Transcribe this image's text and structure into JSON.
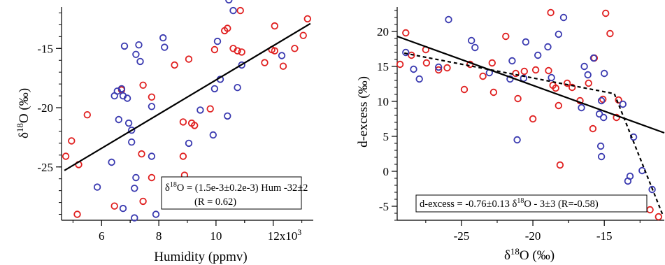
{
  "chart_data": [
    {
      "type": "scatter",
      "title": "",
      "xlabel": "Humidity (ppmv)",
      "ylabel": "δ18O (‰)",
      "xlim": [
        4.6,
        13.4
      ],
      "ylim": [
        -29.5,
        -11.5
      ],
      "x_ticks": [
        {
          "value": 6,
          "label": "6"
        },
        {
          "value": 8,
          "label": "8"
        },
        {
          "value": 10,
          "label": "10"
        },
        {
          "value": 12,
          "label": "12x10³"
        }
      ],
      "y_ticks": [
        {
          "value": -15,
          "label": "-15"
        },
        {
          "value": -20,
          "label": "-20"
        },
        {
          "value": -25,
          "label": "-25"
        }
      ],
      "grid": false,
      "series": [
        {
          "color": "#e02020",
          "marker": "open-circle",
          "points": [
            [
              4.75,
              -24.1
            ],
            [
              4.95,
              -22.8
            ],
            [
              5.2,
              -24.8
            ],
            [
              5.15,
              -29.0
            ],
            [
              5.5,
              -20.6
            ],
            [
              6.45,
              -28.3
            ],
            [
              6.7,
              -18.5
            ],
            [
              7.45,
              -18.1
            ],
            [
              7.4,
              -23.9
            ],
            [
              7.45,
              -27.9
            ],
            [
              7.75,
              -25.9
            ],
            [
              7.75,
              -19.1
            ],
            [
              8.55,
              -16.4
            ],
            [
              8.85,
              -21.2
            ],
            [
              8.85,
              -24.1
            ],
            [
              8.9,
              -25.7
            ],
            [
              9.05,
              -15.9
            ],
            [
              9.15,
              -21.3
            ],
            [
              9.25,
              -21.5
            ],
            [
              9.8,
              -20.1
            ],
            [
              9.95,
              -15.1
            ],
            [
              10.3,
              -13.5
            ],
            [
              10.4,
              -13.3
            ],
            [
              10.6,
              -15.0
            ],
            [
              10.75,
              -15.2
            ],
            [
              10.85,
              -11.8
            ],
            [
              10.9,
              -15.3
            ],
            [
              11.7,
              -16.2
            ],
            [
              11.95,
              -15.1
            ],
            [
              12.05,
              -13.1
            ],
            [
              12.05,
              -15.2
            ],
            [
              12.35,
              -16.5
            ],
            [
              12.75,
              -15.0
            ],
            [
              13.05,
              -13.9
            ],
            [
              13.2,
              -12.5
            ]
          ]
        },
        {
          "color": "#3a3ab0",
          "marker": "open-circle",
          "points": [
            [
              5.85,
              -26.7
            ],
            [
              6.35,
              -24.6
            ],
            [
              6.45,
              -19.0
            ],
            [
              6.55,
              -18.6
            ],
            [
              6.6,
              -21.0
            ],
            [
              6.7,
              -18.4
            ],
            [
              6.75,
              -19.0
            ],
            [
              6.75,
              -28.5
            ],
            [
              6.8,
              -14.8
            ],
            [
              6.9,
              -19.2
            ],
            [
              6.95,
              -21.3
            ],
            [
              7.05,
              -21.9
            ],
            [
              7.05,
              -22.9
            ],
            [
              7.15,
              -26.8
            ],
            [
              7.15,
              -29.3
            ],
            [
              7.2,
              -25.9
            ],
            [
              7.2,
              -15.5
            ],
            [
              7.3,
              -14.7
            ],
            [
              7.35,
              -16.1
            ],
            [
              7.75,
              -19.9
            ],
            [
              7.75,
              -24.1
            ],
            [
              7.9,
              -29.0
            ],
            [
              8.15,
              -14.1
            ],
            [
              8.2,
              -14.9
            ],
            [
              9.05,
              -23.0
            ],
            [
              9.45,
              -20.2
            ],
            [
              9.9,
              -22.3
            ],
            [
              9.95,
              -18.4
            ],
            [
              10.05,
              -14.4
            ],
            [
              10.15,
              -17.6
            ],
            [
              10.4,
              -20.7
            ],
            [
              10.45,
              -10.9
            ],
            [
              10.6,
              -11.8
            ],
            [
              10.75,
              -18.3
            ],
            [
              10.9,
              -16.4
            ],
            [
              12.3,
              -15.6
            ]
          ]
        }
      ],
      "fit_line": [
        [
          4.7,
          -25.3
        ],
        [
          13.3,
          -12.9
        ]
      ],
      "annotation": {
        "line1": "δ18O = (1.5e-3±0.2e-3) Hum -32±2",
        "line2": "(R = 0.62)"
      }
    },
    {
      "type": "scatter",
      "title": "",
      "xlabel": "δ18O (‰)",
      "ylabel": "d-excess (‰)",
      "xlim": [
        -29.5,
        -10.8
      ],
      "ylim": [
        -7,
        23.5
      ],
      "x_ticks": [
        {
          "value": -25,
          "label": "-25"
        },
        {
          "value": -20,
          "label": "-20"
        },
        {
          "value": -15,
          "label": "-15"
        }
      ],
      "y_ticks": [
        {
          "value": 20,
          "label": "20"
        },
        {
          "value": 15,
          "label": "15"
        },
        {
          "value": 10,
          "label": "10"
        },
        {
          "value": 5,
          "label": "5"
        },
        {
          "value": 0,
          "label": "0"
        },
        {
          "value": -5,
          "label": "-5"
        }
      ],
      "grid": false,
      "series": [
        {
          "color": "#e02020",
          "marker": "open-circle",
          "points": [
            [
              -29.3,
              15.3
            ],
            [
              -28.9,
              19.8
            ],
            [
              -28.5,
              16.6
            ],
            [
              -27.5,
              17.4
            ],
            [
              -27.45,
              15.5
            ],
            [
              -26.6,
              14.5
            ],
            [
              -26.0,
              14.8
            ],
            [
              -24.8,
              11.7
            ],
            [
              -24.4,
              15.3
            ],
            [
              -23.5,
              13.6
            ],
            [
              -22.85,
              15.5
            ],
            [
              -22.75,
              11.3
            ],
            [
              -21.9,
              19.3
            ],
            [
              -21.2,
              14.0
            ],
            [
              -21.05,
              10.4
            ],
            [
              -20.6,
              14.3
            ],
            [
              -20.0,
              7.5
            ],
            [
              -19.8,
              14.5
            ],
            [
              -18.9,
              14.4
            ],
            [
              -18.75,
              22.7
            ],
            [
              -18.6,
              12.3
            ],
            [
              -18.4,
              11.9
            ],
            [
              -18.2,
              9.4
            ],
            [
              -18.1,
              0.9
            ],
            [
              -17.6,
              12.6
            ],
            [
              -17.25,
              12.0
            ],
            [
              -16.7,
              10.1
            ],
            [
              -16.1,
              12.6
            ],
            [
              -15.8,
              6.1
            ],
            [
              -15.7,
              16.2
            ],
            [
              -15.1,
              10.3
            ],
            [
              -14.9,
              22.6
            ],
            [
              -14.6,
              19.7
            ],
            [
              -14.15,
              7.7
            ],
            [
              -14.0,
              10.2
            ],
            [
              -11.8,
              -5.5
            ],
            [
              -11.2,
              -6.5
            ]
          ]
        },
        {
          "color": "#3a3ab0",
          "marker": "open-circle",
          "points": [
            [
              -28.9,
              17.0
            ],
            [
              -28.35,
              14.6
            ],
            [
              -27.95,
              13.2
            ],
            [
              -26.6,
              14.9
            ],
            [
              -25.9,
              21.7
            ],
            [
              -24.3,
              18.7
            ],
            [
              -24.05,
              17.7
            ],
            [
              -23.05,
              14.1
            ],
            [
              -21.6,
              13.2
            ],
            [
              -21.45,
              15.8
            ],
            [
              -21.1,
              4.5
            ],
            [
              -20.65,
              13.3
            ],
            [
              -20.5,
              18.5
            ],
            [
              -19.65,
              16.6
            ],
            [
              -18.95,
              17.8
            ],
            [
              -18.7,
              13.4
            ],
            [
              -18.2,
              19.6
            ],
            [
              -17.85,
              22.0
            ],
            [
              -16.6,
              9.1
            ],
            [
              -16.4,
              15.0
            ],
            [
              -16.15,
              13.8
            ],
            [
              -15.75,
              16.2
            ],
            [
              -15.35,
              8.2
            ],
            [
              -15.25,
              3.6
            ],
            [
              -15.2,
              2.1
            ],
            [
              -15.2,
              10.1
            ],
            [
              -15.05,
              7.7
            ],
            [
              -15.0,
              14.0
            ],
            [
              -13.7,
              9.6
            ],
            [
              -13.35,
              -1.4
            ],
            [
              -13.2,
              -0.7
            ],
            [
              -12.95,
              4.9
            ],
            [
              -12.35,
              0.1
            ],
            [
              -11.65,
              -2.6
            ]
          ]
        }
      ],
      "fit_line": [
        [
          -29.5,
          19.3
        ],
        [
          -10.8,
          5.5
        ]
      ],
      "piecewise_fit": [
        [
          -29.0,
          16.9
        ],
        [
          -14.3,
          11.1
        ],
        [
          -10.9,
          -6.3
        ]
      ],
      "annotation": {
        "line1": "d-excess = -0.76±0.13 δ18O - 3±3 (R=-0.58)"
      }
    }
  ]
}
